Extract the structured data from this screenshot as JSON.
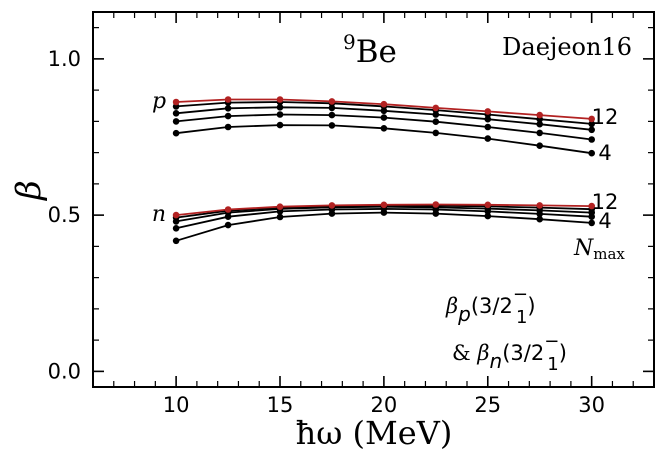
{
  "chart_data": {
    "type": "line",
    "title": "9Be",
    "title_main": "Be",
    "title_super": "9",
    "corner_label": "Daejeon16",
    "xlabel": "ħω (MeV)",
    "ylabel": "β",
    "xlim": [
      6,
      33
    ],
    "ylim": [
      -0.05,
      1.15
    ],
    "grid": false,
    "xticks": [
      "10",
      "15",
      "20",
      "25",
      "30"
    ],
    "yticks": [
      "0.0",
      "0.5",
      "1.0"
    ],
    "x": [
      10,
      12.5,
      15,
      17.5,
      20,
      22.5,
      25,
      27.5,
      30
    ],
    "group_labels": {
      "proton": "p",
      "neutron": "n"
    },
    "nmax_labels": {
      "top": "12",
      "bottom": "4",
      "name": "N",
      "name_sub": "max"
    },
    "annotation": {
      "line1_beta": "β",
      "line1_sub": "p",
      "line1_rest": "(3/2",
      "line1_frac_sup": "−",
      "line1_frac_sub": "1",
      "line1_close": ")",
      "line2_prefix": "& ",
      "line2_beta": "β",
      "line2_sub": "n",
      "line2_rest": "(3/2",
      "line2_frac_sup": "−",
      "line2_frac_sub": "1",
      "line2_close": ")"
    },
    "series": [
      {
        "group": "p",
        "nmax": 4,
        "color": "#000000",
        "values": [
          0.762,
          0.782,
          0.788,
          0.787,
          0.778,
          0.763,
          0.745,
          0.722,
          0.698
        ]
      },
      {
        "group": "p",
        "nmax": 6,
        "color": "#000000",
        "values": [
          0.8,
          0.817,
          0.822,
          0.82,
          0.812,
          0.799,
          0.782,
          0.763,
          0.742
        ]
      },
      {
        "group": "p",
        "nmax": 8,
        "color": "#000000",
        "values": [
          0.826,
          0.842,
          0.845,
          0.843,
          0.834,
          0.822,
          0.807,
          0.791,
          0.773
        ]
      },
      {
        "group": "p",
        "nmax": 10,
        "color": "#000000",
        "values": [
          0.848,
          0.86,
          0.862,
          0.858,
          0.848,
          0.836,
          0.822,
          0.807,
          0.792
        ]
      },
      {
        "group": "p",
        "nmax": 12,
        "color": "#b22222",
        "values": [
          0.862,
          0.87,
          0.87,
          0.864,
          0.855,
          0.843,
          0.832,
          0.82,
          0.808
        ]
      },
      {
        "group": "n",
        "nmax": 4,
        "color": "#000000",
        "values": [
          0.418,
          0.468,
          0.494,
          0.505,
          0.508,
          0.505,
          0.497,
          0.487,
          0.475
        ]
      },
      {
        "group": "n",
        "nmax": 6,
        "color": "#000000",
        "values": [
          0.458,
          0.495,
          0.512,
          0.518,
          0.52,
          0.518,
          0.512,
          0.504,
          0.495
        ]
      },
      {
        "group": "n",
        "nmax": 8,
        "color": "#000000",
        "values": [
          0.48,
          0.508,
          0.52,
          0.525,
          0.527,
          0.525,
          0.521,
          0.515,
          0.508
        ]
      },
      {
        "group": "n",
        "nmax": 10,
        "color": "#000000",
        "values": [
          0.492,
          0.514,
          0.524,
          0.528,
          0.53,
          0.53,
          0.528,
          0.524,
          0.519
        ]
      },
      {
        "group": "n",
        "nmax": 12,
        "color": "#b22222",
        "values": [
          0.5,
          0.518,
          0.527,
          0.531,
          0.533,
          0.534,
          0.533,
          0.531,
          0.529
        ]
      }
    ]
  }
}
